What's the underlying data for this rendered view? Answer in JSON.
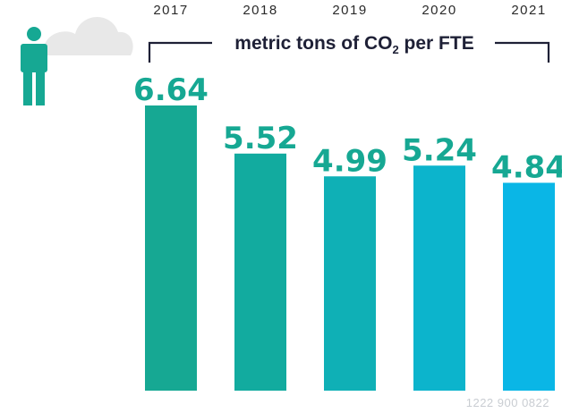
{
  "chart_data": {
    "type": "bar",
    "unit_label": {
      "main": "metric tons of CO",
      "subscript": "2",
      "suffix": " per FTE"
    },
    "categories": [
      "2017",
      "2018",
      "2019",
      "2020",
      "2021"
    ],
    "values": [
      6.64,
      5.52,
      4.99,
      5.24,
      4.84
    ],
    "value_labels": [
      "6.64",
      "5.52",
      "4.99",
      "5.24",
      "4.84"
    ],
    "ylim": [
      0,
      6.64
    ],
    "colors": {
      "bars": [
        "#16a893",
        "#12ab9f",
        "#0fb0b6",
        "#0cb4cc",
        "#0ab6e6"
      ],
      "value_text": "#16a893",
      "person": "#16a893",
      "cloud": "#e8e8e8",
      "bracket": "#1e2036"
    },
    "icons": [
      "person-icon",
      "cloud-icon"
    ],
    "footer_code": "1222 900 0822"
  }
}
